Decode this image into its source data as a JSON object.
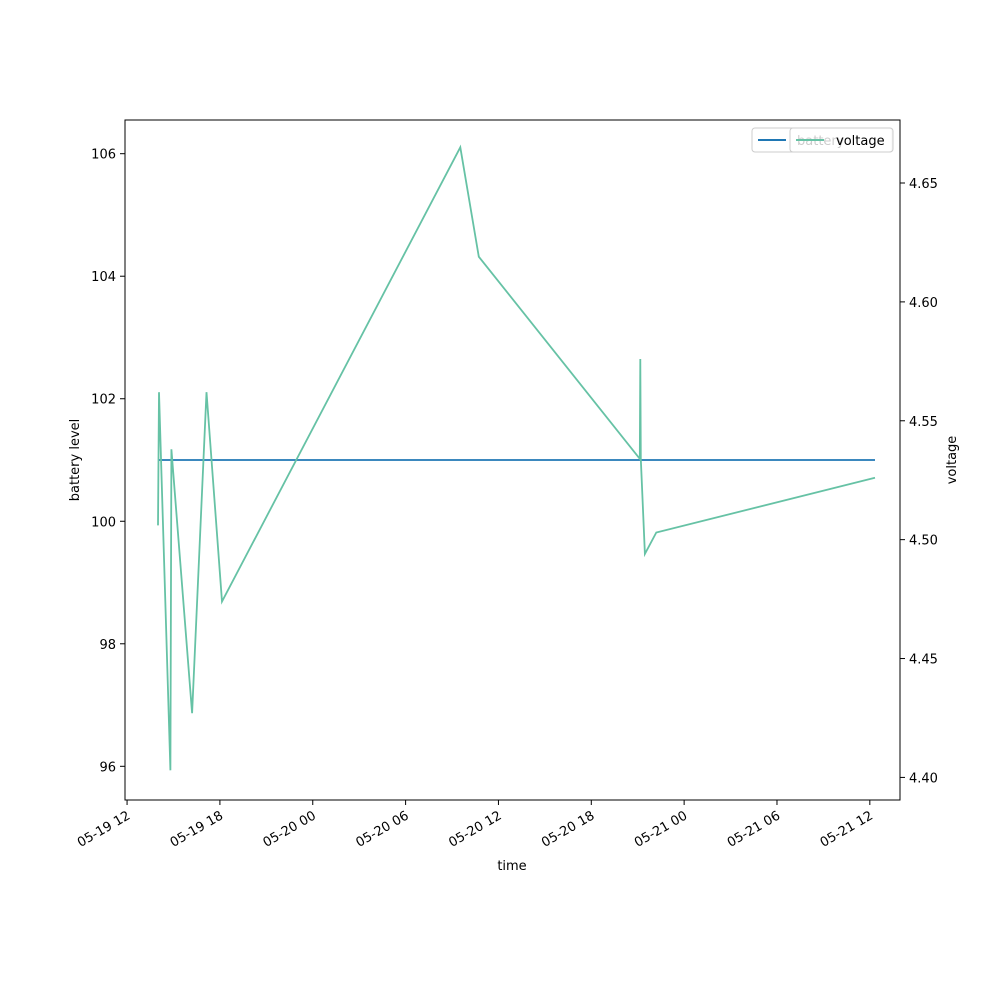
{
  "chart_data": {
    "type": "line",
    "xlabel": "time",
    "ylabel_left": "battery level",
    "ylabel_right": "voltage",
    "x_ticks": [
      "05-19 12",
      "05-19 18",
      "05-20 00",
      "05-20 06",
      "05-20 12",
      "05-20 18",
      "05-21 00",
      "05-21 06",
      "05-21 12"
    ],
    "x_range": [
      "2024-05-19 11:52",
      "2024-05-21 13:57"
    ],
    "ylim_left": [
      95.45,
      106.55
    ],
    "yticks_left": [
      96,
      98,
      100,
      102,
      104,
      106
    ],
    "ylim_right": [
      4.3905,
      4.6765
    ],
    "yticks_right": [
      4.4,
      4.45,
      4.5,
      4.55,
      4.6,
      4.65
    ],
    "series": [
      {
        "name": "battery",
        "axis": "left",
        "color": "#1f77b4",
        "points": [
          {
            "x": "2024-05-19 14:00",
            "y": 101
          },
          {
            "x": "2024-05-21 12:20",
            "y": 101
          }
        ]
      },
      {
        "name": "voltage",
        "axis": "right",
        "color": "#66c2a5",
        "points": [
          {
            "x": "2024-05-19 14:00",
            "y": 4.506
          },
          {
            "x": "2024-05-19 14:04",
            "y": 4.562
          },
          {
            "x": "2024-05-19 14:48",
            "y": 4.403
          },
          {
            "x": "2024-05-19 14:52",
            "y": 4.538
          },
          {
            "x": "2024-05-19 16:12",
            "y": 4.427
          },
          {
            "x": "2024-05-19 17:08",
            "y": 4.562
          },
          {
            "x": "2024-05-19 18:08",
            "y": 4.474
          },
          {
            "x": "2024-05-20 09:32",
            "y": 4.665
          },
          {
            "x": "2024-05-20 10:44",
            "y": 4.619
          },
          {
            "x": "2024-05-20 21:08",
            "y": 4.534
          },
          {
            "x": "2024-05-20 21:10",
            "y": 4.576
          },
          {
            "x": "2024-05-20 21:12",
            "y": 4.534
          },
          {
            "x": "2024-05-20 21:28",
            "y": 4.494
          },
          {
            "x": "2024-05-20 22:12",
            "y": 4.503
          },
          {
            "x": "2024-05-21 12:20",
            "y": 4.526
          }
        ]
      }
    ],
    "legends": [
      {
        "entries": [
          "battery"
        ],
        "placement": "top-right"
      },
      {
        "entries": [
          "voltage"
        ],
        "placement": "top-right"
      }
    ]
  }
}
